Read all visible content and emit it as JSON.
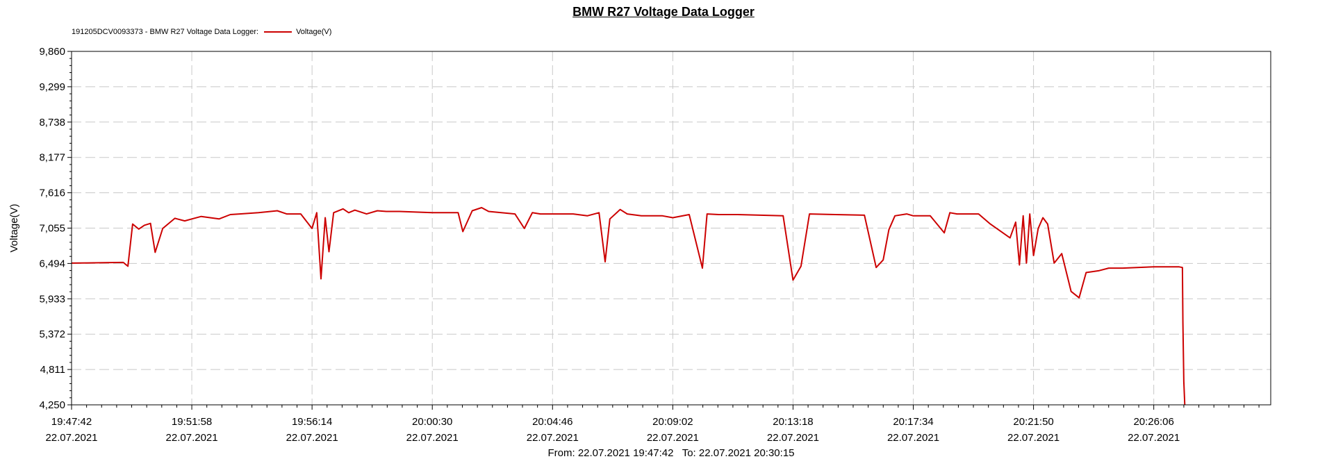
{
  "chart_data": {
    "type": "line",
    "title": "BMW R27 Voltage Data Logger",
    "legend_prefix": "191205DCV0093373 - BMW R27 Voltage Data Logger:",
    "legend_placement": "top-left",
    "ylabel": "Voltage(V)",
    "ylim": [
      4.25,
      9.86
    ],
    "y_ticks": [
      {
        "value": 4.25,
        "label": "4,250"
      },
      {
        "value": 4.811,
        "label": "4,811"
      },
      {
        "value": 5.372,
        "label": "5,372"
      },
      {
        "value": 5.933,
        "label": "5,933"
      },
      {
        "value": 6.494,
        "label": "6,494"
      },
      {
        "value": 7.055,
        "label": "7,055"
      },
      {
        "value": 7.616,
        "label": "7,616"
      },
      {
        "value": 8.177,
        "label": "8,177"
      },
      {
        "value": 8.738,
        "label": "8,738"
      },
      {
        "value": 9.299,
        "label": "9,299"
      },
      {
        "value": 9.86,
        "label": "9,860"
      }
    ],
    "x_ticks": [
      {
        "time": "19:47:42",
        "date": "22.07.2021"
      },
      {
        "time": "19:51:58",
        "date": "22.07.2021"
      },
      {
        "time": "19:56:14",
        "date": "22.07.2021"
      },
      {
        "time": "20:00:30",
        "date": "22.07.2021"
      },
      {
        "time": "20:04:46",
        "date": "22.07.2021"
      },
      {
        "time": "20:09:02",
        "date": "22.07.2021"
      },
      {
        "time": "20:13:18",
        "date": "22.07.2021"
      },
      {
        "time": "20:17:34",
        "date": "22.07.2021"
      },
      {
        "time": "20:21:50",
        "date": "22.07.2021"
      },
      {
        "time": "20:26:06",
        "date": "22.07.2021"
      }
    ],
    "xlim": [
      "19:47:42",
      "20:30:15"
    ],
    "range_label": "From: 22.07.2021 19:47:42   To: 22.07.2021 20:30:15",
    "grid": true,
    "series": [
      {
        "name": "Voltage(V)",
        "color": "#cc0000",
        "x": [
          "19:47:42",
          "19:49:32",
          "19:49:42",
          "19:49:52",
          "19:50:05",
          "19:50:17",
          "19:50:30",
          "19:50:40",
          "19:50:56",
          "19:51:22",
          "19:51:43",
          "19:51:58",
          "19:52:18",
          "19:52:56",
          "19:53:20",
          "19:53:40",
          "19:54:20",
          "19:55:00",
          "19:55:20",
          "19:55:50",
          "19:56:14",
          "19:56:24",
          "19:56:33",
          "19:56:42",
          "19:56:50",
          "19:57:00",
          "19:57:20",
          "19:57:32",
          "19:57:45",
          "19:58:10",
          "19:58:33",
          "19:58:52",
          "19:59:20",
          "20:00:30",
          "20:01:25",
          "20:01:35",
          "20:01:55",
          "20:02:15",
          "20:02:30",
          "20:03:26",
          "20:03:46",
          "20:04:03",
          "20:04:20",
          "20:05:30",
          "20:06:00",
          "20:06:25",
          "20:06:38",
          "20:06:48",
          "20:07:10",
          "20:07:25",
          "20:07:55",
          "20:08:40",
          "20:09:02",
          "20:09:37",
          "20:10:05",
          "20:10:15",
          "20:10:40",
          "20:11:20",
          "20:12:57",
          "20:13:18",
          "20:13:35",
          "20:13:53",
          "20:14:48",
          "20:15:50",
          "20:16:15",
          "20:16:30",
          "20:16:42",
          "20:16:55",
          "20:17:20",
          "20:17:34",
          "20:18:10",
          "20:18:40",
          "20:18:52",
          "20:19:07",
          "20:19:53",
          "20:20:18",
          "20:21:00",
          "20:21:12",
          "20:21:20",
          "20:21:28",
          "20:21:35",
          "20:21:42",
          "20:21:50",
          "20:22:00",
          "20:22:10",
          "20:22:20",
          "20:22:34",
          "20:22:50",
          "20:23:10",
          "20:23:27",
          "20:23:42",
          "20:24:10",
          "20:24:30",
          "20:25:00",
          "20:25:30",
          "20:26:06",
          "20:27:00",
          "20:27:07",
          "20:27:08",
          "20:27:10",
          "20:27:12"
        ],
        "values": [
          6.5,
          6.51,
          6.45,
          7.12,
          7.04,
          7.1,
          7.13,
          6.67,
          7.05,
          7.21,
          7.17,
          7.2,
          7.24,
          7.2,
          7.27,
          7.28,
          7.3,
          7.33,
          7.28,
          7.28,
          7.05,
          7.3,
          6.25,
          7.22,
          6.68,
          7.3,
          7.36,
          7.3,
          7.34,
          7.28,
          7.33,
          7.32,
          7.32,
          7.3,
          7.3,
          7.0,
          7.33,
          7.38,
          7.32,
          7.28,
          7.05,
          7.3,
          7.28,
          7.28,
          7.25,
          7.3,
          6.52,
          7.2,
          7.35,
          7.28,
          7.25,
          7.25,
          7.22,
          7.27,
          6.42,
          7.28,
          7.27,
          7.27,
          7.25,
          6.23,
          6.45,
          7.28,
          7.27,
          7.26,
          6.43,
          6.55,
          7.03,
          7.25,
          7.28,
          7.25,
          7.25,
          6.98,
          7.3,
          7.28,
          7.28,
          7.12,
          6.9,
          7.15,
          6.47,
          7.25,
          6.5,
          7.28,
          6.62,
          7.05,
          7.22,
          7.12,
          6.5,
          6.65,
          6.05,
          5.95,
          6.35,
          6.38,
          6.42,
          6.42,
          6.43,
          6.44,
          6.44,
          6.43,
          5.55,
          4.62,
          4.25
        ]
      }
    ]
  }
}
